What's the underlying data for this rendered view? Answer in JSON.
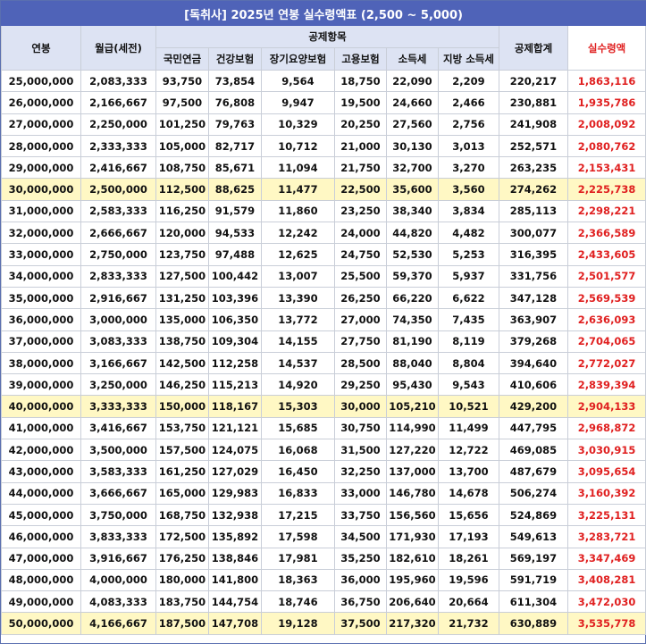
{
  "title": "[독취사] 2025년 연봉 실수령액표 (2,500 ~ 5,000)",
  "headers": {
    "annual": "연봉",
    "monthly": "월급(세전)",
    "deductions_group": "공제항목",
    "pension": "국민연금",
    "health": "건강보험",
    "longterm": "장기요양보험",
    "employment": "고용보험",
    "income_tax": "소득세",
    "local_tax": "지방 소득세",
    "total": "공제합계",
    "net": "실수령액"
  },
  "rows": [
    {
      "annual": "25,000,000",
      "monthly": "2,083,333",
      "pension": "93,750",
      "health": "73,854",
      "longterm": "9,564",
      "employment": "18,750",
      "income_tax": "22,090",
      "local_tax": "2,209",
      "total": "220,217",
      "net": "1,863,116"
    },
    {
      "annual": "26,000,000",
      "monthly": "2,166,667",
      "pension": "97,500",
      "health": "76,808",
      "longterm": "9,947",
      "employment": "19,500",
      "income_tax": "24,660",
      "local_tax": "2,466",
      "total": "230,881",
      "net": "1,935,786"
    },
    {
      "annual": "27,000,000",
      "monthly": "2,250,000",
      "pension": "101,250",
      "health": "79,763",
      "longterm": "10,329",
      "employment": "20,250",
      "income_tax": "27,560",
      "local_tax": "2,756",
      "total": "241,908",
      "net": "2,008,092"
    },
    {
      "annual": "28,000,000",
      "monthly": "2,333,333",
      "pension": "105,000",
      "health": "82,717",
      "longterm": "10,712",
      "employment": "21,000",
      "income_tax": "30,130",
      "local_tax": "3,013",
      "total": "252,571",
      "net": "2,080,762"
    },
    {
      "annual": "29,000,000",
      "monthly": "2,416,667",
      "pension": "108,750",
      "health": "85,671",
      "longterm": "11,094",
      "employment": "21,750",
      "income_tax": "32,700",
      "local_tax": "3,270",
      "total": "263,235",
      "net": "2,153,431"
    },
    {
      "annual": "30,000,000",
      "monthly": "2,500,000",
      "pension": "112,500",
      "health": "88,625",
      "longterm": "11,477",
      "employment": "22,500",
      "income_tax": "35,600",
      "local_tax": "3,560",
      "total": "274,262",
      "net": "2,225,738",
      "highlight": true
    },
    {
      "annual": "31,000,000",
      "monthly": "2,583,333",
      "pension": "116,250",
      "health": "91,579",
      "longterm": "11,860",
      "employment": "23,250",
      "income_tax": "38,340",
      "local_tax": "3,834",
      "total": "285,113",
      "net": "2,298,221"
    },
    {
      "annual": "32,000,000",
      "monthly": "2,666,667",
      "pension": "120,000",
      "health": "94,533",
      "longterm": "12,242",
      "employment": "24,000",
      "income_tax": "44,820",
      "local_tax": "4,482",
      "total": "300,077",
      "net": "2,366,589"
    },
    {
      "annual": "33,000,000",
      "monthly": "2,750,000",
      "pension": "123,750",
      "health": "97,488",
      "longterm": "12,625",
      "employment": "24,750",
      "income_tax": "52,530",
      "local_tax": "5,253",
      "total": "316,395",
      "net": "2,433,605"
    },
    {
      "annual": "34,000,000",
      "monthly": "2,833,333",
      "pension": "127,500",
      "health": "100,442",
      "longterm": "13,007",
      "employment": "25,500",
      "income_tax": "59,370",
      "local_tax": "5,937",
      "total": "331,756",
      "net": "2,501,577"
    },
    {
      "annual": "35,000,000",
      "monthly": "2,916,667",
      "pension": "131,250",
      "health": "103,396",
      "longterm": "13,390",
      "employment": "26,250",
      "income_tax": "66,220",
      "local_tax": "6,622",
      "total": "347,128",
      "net": "2,569,539"
    },
    {
      "annual": "36,000,000",
      "monthly": "3,000,000",
      "pension": "135,000",
      "health": "106,350",
      "longterm": "13,772",
      "employment": "27,000",
      "income_tax": "74,350",
      "local_tax": "7,435",
      "total": "363,907",
      "net": "2,636,093"
    },
    {
      "annual": "37,000,000",
      "monthly": "3,083,333",
      "pension": "138,750",
      "health": "109,304",
      "longterm": "14,155",
      "employment": "27,750",
      "income_tax": "81,190",
      "local_tax": "8,119",
      "total": "379,268",
      "net": "2,704,065"
    },
    {
      "annual": "38,000,000",
      "monthly": "3,166,667",
      "pension": "142,500",
      "health": "112,258",
      "longterm": "14,537",
      "employment": "28,500",
      "income_tax": "88,040",
      "local_tax": "8,804",
      "total": "394,640",
      "net": "2,772,027"
    },
    {
      "annual": "39,000,000",
      "monthly": "3,250,000",
      "pension": "146,250",
      "health": "115,213",
      "longterm": "14,920",
      "employment": "29,250",
      "income_tax": "95,430",
      "local_tax": "9,543",
      "total": "410,606",
      "net": "2,839,394"
    },
    {
      "annual": "40,000,000",
      "monthly": "3,333,333",
      "pension": "150,000",
      "health": "118,167",
      "longterm": "15,303",
      "employment": "30,000",
      "income_tax": "105,210",
      "local_tax": "10,521",
      "total": "429,200",
      "net": "2,904,133",
      "highlight": true
    },
    {
      "annual": "41,000,000",
      "monthly": "3,416,667",
      "pension": "153,750",
      "health": "121,121",
      "longterm": "15,685",
      "employment": "30,750",
      "income_tax": "114,990",
      "local_tax": "11,499",
      "total": "447,795",
      "net": "2,968,872"
    },
    {
      "annual": "42,000,000",
      "monthly": "3,500,000",
      "pension": "157,500",
      "health": "124,075",
      "longterm": "16,068",
      "employment": "31,500",
      "income_tax": "127,220",
      "local_tax": "12,722",
      "total": "469,085",
      "net": "3,030,915"
    },
    {
      "annual": "43,000,000",
      "monthly": "3,583,333",
      "pension": "161,250",
      "health": "127,029",
      "longterm": "16,450",
      "employment": "32,250",
      "income_tax": "137,000",
      "local_tax": "13,700",
      "total": "487,679",
      "net": "3,095,654"
    },
    {
      "annual": "44,000,000",
      "monthly": "3,666,667",
      "pension": "165,000",
      "health": "129,983",
      "longterm": "16,833",
      "employment": "33,000",
      "income_tax": "146,780",
      "local_tax": "14,678",
      "total": "506,274",
      "net": "3,160,392"
    },
    {
      "annual": "45,000,000",
      "monthly": "3,750,000",
      "pension": "168,750",
      "health": "132,938",
      "longterm": "17,215",
      "employment": "33,750",
      "income_tax": "156,560",
      "local_tax": "15,656",
      "total": "524,869",
      "net": "3,225,131"
    },
    {
      "annual": "46,000,000",
      "monthly": "3,833,333",
      "pension": "172,500",
      "health": "135,892",
      "longterm": "17,598",
      "employment": "34,500",
      "income_tax": "171,930",
      "local_tax": "17,193",
      "total": "549,613",
      "net": "3,283,721"
    },
    {
      "annual": "47,000,000",
      "monthly": "3,916,667",
      "pension": "176,250",
      "health": "138,846",
      "longterm": "17,981",
      "employment": "35,250",
      "income_tax": "182,610",
      "local_tax": "18,261",
      "total": "569,197",
      "net": "3,347,469"
    },
    {
      "annual": "48,000,000",
      "monthly": "4,000,000",
      "pension": "180,000",
      "health": "141,800",
      "longterm": "18,363",
      "employment": "36,000",
      "income_tax": "195,960",
      "local_tax": "19,596",
      "total": "591,719",
      "net": "3,408,281"
    },
    {
      "annual": "49,000,000",
      "monthly": "4,083,333",
      "pension": "183,750",
      "health": "144,754",
      "longterm": "18,746",
      "employment": "36,750",
      "income_tax": "206,640",
      "local_tax": "20,664",
      "total": "611,304",
      "net": "3,472,030"
    },
    {
      "annual": "50,000,000",
      "monthly": "4,166,667",
      "pension": "187,500",
      "health": "147,708",
      "longterm": "19,128",
      "employment": "37,500",
      "income_tax": "217,320",
      "local_tax": "21,732",
      "total": "630,889",
      "net": "3,535,778",
      "highlight": true
    }
  ],
  "colors": {
    "title_bg": "#4f63b8",
    "header_bg": "#dde3f3",
    "highlight_bg": "#fff8c4",
    "net_text": "#e02020"
  }
}
